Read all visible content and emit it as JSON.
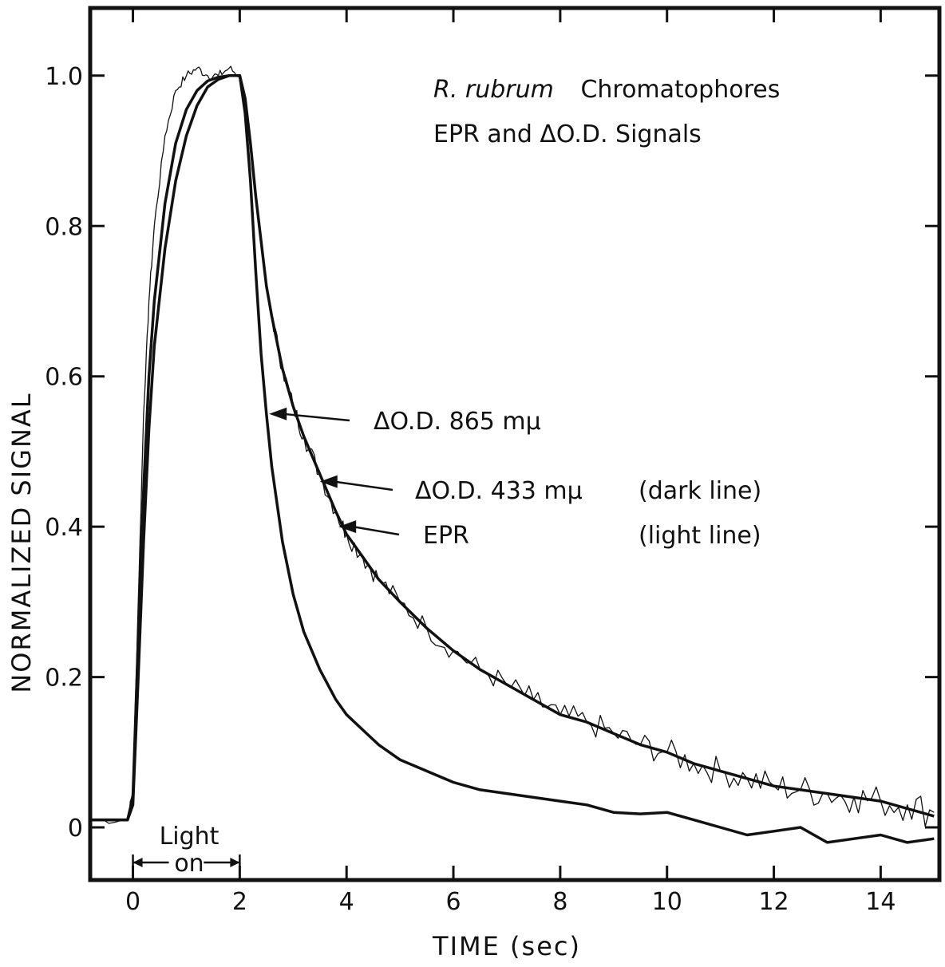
{
  "chart_data": {
    "type": "line",
    "title_line1_italic": "R. rubrum",
    "title_line1_rest": "Chromatophores",
    "title_line2": "EPR and ΔO.D. Signals",
    "xlabel": "TIME (sec)",
    "ylabel": "NORMALIZED SIGNAL",
    "xlim": [
      -0.8,
      15.1
    ],
    "ylim": [
      -0.07,
      1.09
    ],
    "x_ticks": [
      "0",
      "2",
      "4",
      "6",
      "8",
      "10",
      "12",
      "14"
    ],
    "y_ticks": [
      "0",
      "0.2",
      "0.4",
      "0.6",
      "0.8",
      "1.0"
    ],
    "light_on_label_line1": "Light",
    "light_on_label_line2": "on",
    "light_on_interval": [
      0,
      2
    ],
    "annotations": [
      {
        "text": "ΔO.D. 865 mμ",
        "note": "",
        "points_to": [
          2.55,
          0.55
        ]
      },
      {
        "text": "ΔO.D. 433 mμ",
        "note": "(dark line)",
        "points_to": [
          3.5,
          0.46
        ]
      },
      {
        "text": "EPR",
        "note": "(light line)",
        "points_to": [
          3.85,
          0.4
        ]
      }
    ],
    "series": [
      {
        "name": "ΔO.D. 865 mμ",
        "style": "dark",
        "x": [
          -0.8,
          -0.1,
          0.0,
          0.1,
          0.2,
          0.3,
          0.4,
          0.6,
          0.8,
          1.0,
          1.2,
          1.4,
          1.6,
          1.8,
          2.0,
          2.1,
          2.2,
          2.3,
          2.4,
          2.5,
          2.6,
          2.8,
          3.0,
          3.2,
          3.5,
          3.8,
          4.0,
          4.3,
          4.6,
          5.0,
          5.5,
          6.0,
          6.5,
          7.0,
          7.5,
          8.0,
          8.5,
          9.0,
          9.5,
          10.0,
          10.5,
          11.0,
          11.5,
          12.0,
          12.5,
          13.0,
          13.5,
          14.0,
          14.5,
          15.0
        ],
        "y": [
          0.01,
          0.01,
          0.03,
          0.2,
          0.38,
          0.53,
          0.64,
          0.77,
          0.86,
          0.92,
          0.96,
          0.985,
          0.995,
          1.0,
          1.0,
          0.95,
          0.86,
          0.74,
          0.63,
          0.55,
          0.48,
          0.38,
          0.31,
          0.26,
          0.21,
          0.17,
          0.15,
          0.13,
          0.11,
          0.09,
          0.075,
          0.06,
          0.05,
          0.045,
          0.04,
          0.035,
          0.03,
          0.02,
          0.018,
          0.02,
          0.01,
          0.0,
          -0.01,
          -0.005,
          0.0,
          -0.02,
          -0.015,
          -0.01,
          -0.02,
          -0.015
        ]
      },
      {
        "name": "ΔO.D. 433 mμ",
        "style": "dark",
        "x": [
          -0.8,
          -0.1,
          0.0,
          0.1,
          0.2,
          0.3,
          0.4,
          0.6,
          0.8,
          1.0,
          1.2,
          1.4,
          1.6,
          1.8,
          2.0,
          2.1,
          2.2,
          2.3,
          2.4,
          2.5,
          2.6,
          2.8,
          3.0,
          3.2,
          3.5,
          3.8,
          4.0,
          4.3,
          4.6,
          5.0,
          5.5,
          6.0,
          6.5,
          7.0,
          7.5,
          8.0,
          8.5,
          9.0,
          9.5,
          10.0,
          10.5,
          11.0,
          11.5,
          12.0,
          12.5,
          13.0,
          13.5,
          14.0,
          14.5,
          15.0
        ],
        "y": [
          0.01,
          0.01,
          0.04,
          0.25,
          0.45,
          0.6,
          0.7,
          0.83,
          0.91,
          0.955,
          0.98,
          0.993,
          0.998,
          1.0,
          1.0,
          0.97,
          0.91,
          0.84,
          0.78,
          0.72,
          0.68,
          0.61,
          0.56,
          0.52,
          0.47,
          0.42,
          0.39,
          0.36,
          0.33,
          0.3,
          0.265,
          0.235,
          0.21,
          0.19,
          0.17,
          0.15,
          0.14,
          0.125,
          0.11,
          0.1,
          0.085,
          0.075,
          0.065,
          0.055,
          0.05,
          0.045,
          0.04,
          0.035,
          0.025,
          0.015
        ]
      },
      {
        "name": "EPR",
        "style": "light",
        "x": [
          -0.8,
          -0.1,
          0.0,
          0.1,
          0.2,
          0.3,
          0.4,
          0.6,
          0.8,
          1.0,
          1.2,
          1.4,
          1.6,
          1.8,
          2.0,
          2.1,
          2.2,
          2.3,
          2.4,
          2.5,
          2.6,
          2.8,
          3.0,
          3.2,
          3.5,
          3.8,
          4.0,
          4.3,
          4.6,
          5.0,
          5.5,
          6.0,
          6.5,
          7.0,
          7.5,
          8.0,
          8.5,
          9.0,
          9.5,
          10.0,
          10.5,
          11.0,
          11.5,
          12.0,
          12.5,
          13.0,
          13.5,
          14.0,
          14.5,
          15.0
        ],
        "y": [
          0.01,
          0.01,
          0.05,
          0.3,
          0.55,
          0.7,
          0.8,
          0.92,
          0.98,
          1.0,
          1.01,
          1.0,
          1.0,
          1.01,
          1.0,
          0.97,
          0.9,
          0.84,
          0.78,
          0.72,
          0.68,
          0.61,
          0.56,
          0.52,
          0.47,
          0.42,
          0.39,
          0.36,
          0.33,
          0.3,
          0.265,
          0.235,
          0.21,
          0.19,
          0.17,
          0.15,
          0.14,
          0.125,
          0.11,
          0.1,
          0.085,
          0.075,
          0.065,
          0.055,
          0.05,
          0.045,
          0.04,
          0.035,
          0.03,
          0.02
        ]
      }
    ]
  }
}
